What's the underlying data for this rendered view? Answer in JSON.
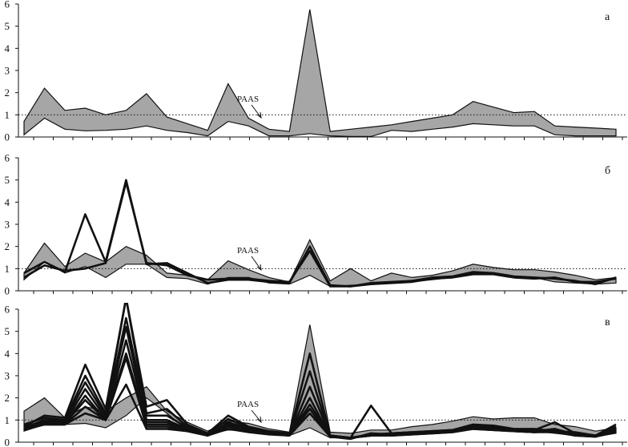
{
  "chart_data": [
    {
      "type": "area",
      "panel_label": "а",
      "ylim": [
        0,
        6
      ],
      "yticks": [
        "0",
        "1",
        "2",
        "3",
        "4",
        "5",
        "6"
      ],
      "x": [
        1,
        2,
        3,
        4,
        5,
        6,
        7,
        8,
        9,
        10,
        11,
        12,
        13,
        14,
        15,
        16,
        17,
        18,
        19,
        20,
        21,
        22,
        23,
        24,
        25,
        26,
        27,
        28,
        29,
        30
      ],
      "band": {
        "lower": [
          0.1,
          0.85,
          0.35,
          0.28,
          0.3,
          0.35,
          0.5,
          0.3,
          0.2,
          0.05,
          0.7,
          0.5,
          0.05,
          0.05,
          0.15,
          0.05,
          0.02,
          0.02,
          0.3,
          0.25,
          0.35,
          0.45,
          0.6,
          0.55,
          0.5,
          0.5,
          0.1,
          0.05,
          0.05,
          0.05
        ],
        "upper": [
          0.7,
          2.2,
          1.2,
          1.3,
          1.0,
          1.2,
          1.95,
          0.9,
          0.6,
          0.3,
          2.4,
          0.85,
          0.35,
          0.25,
          5.75,
          0.25,
          0.35,
          0.45,
          0.55,
          0.7,
          0.85,
          1.0,
          1.6,
          1.35,
          1.1,
          1.15,
          0.5,
          0.45,
          0.4,
          0.35
        ]
      },
      "lines": [],
      "reference": {
        "label": "PAAS",
        "value": 1
      }
    },
    {
      "type": "area",
      "panel_label": "б",
      "ylim": [
        0,
        6
      ],
      "yticks": [
        "0",
        "1",
        "2",
        "3",
        "4",
        "5",
        "6"
      ],
      "x": [
        1,
        2,
        3,
        4,
        5,
        6,
        7,
        8,
        9,
        10,
        11,
        12,
        13,
        14,
        15,
        16,
        17,
        18,
        19,
        20,
        21,
        22,
        23,
        24,
        25,
        26,
        27,
        28,
        29,
        30
      ],
      "band": {
        "lower": [
          0.5,
          1.3,
          0.8,
          1.1,
          0.6,
          1.2,
          1.2,
          0.6,
          0.55,
          0.3,
          0.6,
          0.6,
          0.35,
          0.3,
          0.7,
          0.2,
          0.25,
          0.3,
          0.35,
          0.4,
          0.5,
          0.6,
          0.8,
          0.75,
          0.6,
          0.6,
          0.4,
          0.35,
          0.3,
          0.35
        ],
        "upper": [
          0.8,
          2.15,
          1.1,
          1.7,
          1.3,
          2.0,
          1.6,
          0.8,
          0.7,
          0.5,
          1.35,
          0.95,
          0.6,
          0.4,
          2.3,
          0.45,
          1.0,
          0.45,
          0.8,
          0.6,
          0.7,
          0.9,
          1.2,
          1.05,
          0.95,
          0.95,
          0.85,
          0.7,
          0.5,
          0.6
        ]
      },
      "lines": [
        {
          "values": [
            0.8,
            1.3,
            0.85,
            3.45,
            1.3,
            5.0,
            1.2,
            1.25,
            0.8,
            0.35,
            0.5,
            0.5,
            0.4,
            0.35,
            2.0,
            0.25,
            0.2,
            0.35,
            0.4,
            0.45,
            0.6,
            0.65,
            0.85,
            0.8,
            0.65,
            0.6,
            0.55,
            0.45,
            0.3,
            0.6
          ]
        },
        {
          "values": [
            0.6,
            1.15,
            0.9,
            1.0,
            1.25,
            4.9,
            1.25,
            1.15,
            0.7,
            0.5,
            0.55,
            0.55,
            0.45,
            0.4,
            1.8,
            0.2,
            0.2,
            0.3,
            0.35,
            0.4,
            0.55,
            0.6,
            0.75,
            0.75,
            0.6,
            0.55,
            0.6,
            0.4,
            0.4,
            0.55
          ]
        }
      ],
      "reference": {
        "label": "PAAS",
        "value": 1
      }
    },
    {
      "type": "area",
      "panel_label": "в",
      "ylim": [
        0,
        6
      ],
      "yticks": [
        "0",
        "1",
        "2",
        "3",
        "4",
        "5",
        "6"
      ],
      "x": [
        1,
        2,
        3,
        4,
        5,
        6,
        7,
        8,
        9,
        10,
        11,
        12,
        13,
        14,
        15,
        16,
        17,
        18,
        19,
        20,
        21,
        22,
        23,
        24,
        25,
        26,
        27,
        28,
        29,
        30
      ],
      "band": {
        "lower": [
          0.5,
          0.8,
          0.8,
          0.85,
          0.65,
          1.2,
          2.0,
          1.3,
          0.55,
          0.35,
          0.55,
          0.5,
          0.35,
          0.3,
          0.65,
          0.2,
          0.2,
          0.3,
          0.35,
          0.4,
          0.45,
          0.5,
          0.6,
          0.55,
          0.5,
          0.5,
          0.4,
          0.3,
          0.25,
          0.4
        ],
        "upper": [
          1.4,
          2.0,
          1.1,
          1.6,
          1.4,
          2.0,
          2.5,
          1.4,
          0.9,
          0.5,
          0.95,
          0.85,
          0.6,
          0.45,
          5.3,
          0.45,
          0.4,
          0.55,
          0.55,
          0.7,
          0.8,
          0.95,
          1.15,
          1.05,
          1.1,
          1.1,
          0.8,
          0.7,
          0.5,
          0.65
        ]
      },
      "lines": [
        {
          "values": [
            0.7,
            1.2,
            1.1,
            3.5,
            1.5,
            6.5,
            1.6,
            1.9,
            0.8,
            0.4,
            1.2,
            0.7,
            0.5,
            0.4,
            1.5,
            0.3,
            0.2,
            1.65,
            0.4,
            0.45,
            0.5,
            0.55,
            0.8,
            0.75,
            0.6,
            0.6,
            0.5,
            0.45,
            0.3,
            0.7
          ]
        },
        {
          "values": [
            0.8,
            1.1,
            1.0,
            3.0,
            1.3,
            6.5,
            1.3,
            1.5,
            0.7,
            0.35,
            1.05,
            0.65,
            0.45,
            0.35,
            4.0,
            0.3,
            0.2,
            0.35,
            0.4,
            0.45,
            0.5,
            0.55,
            0.75,
            0.7,
            0.55,
            0.55,
            0.9,
            0.4,
            0.3,
            0.8
          ]
        },
        {
          "values": [
            0.65,
            1.0,
            0.95,
            2.7,
            1.2,
            5.6,
            1.2,
            1.2,
            0.65,
            0.3,
            0.9,
            0.6,
            0.4,
            0.35,
            3.2,
            0.25,
            0.15,
            0.4,
            0.35,
            0.4,
            0.45,
            0.5,
            0.7,
            0.65,
            0.55,
            0.5,
            0.6,
            0.35,
            0.3,
            0.6
          ]
        },
        {
          "values": [
            0.6,
            0.95,
            0.9,
            2.4,
            1.1,
            5.2,
            1.0,
            1.0,
            0.6,
            0.35,
            0.85,
            0.55,
            0.4,
            0.3,
            2.5,
            0.3,
            0.2,
            0.35,
            0.35,
            0.4,
            0.45,
            0.5,
            0.7,
            0.6,
            0.55,
            0.5,
            0.55,
            0.35,
            0.3,
            0.55
          ]
        },
        {
          "values": [
            0.6,
            0.9,
            0.85,
            2.1,
            1.0,
            4.6,
            0.9,
            0.9,
            0.55,
            0.35,
            0.8,
            0.55,
            0.4,
            0.3,
            2.0,
            0.25,
            0.2,
            0.35,
            0.35,
            0.4,
            0.45,
            0.5,
            0.7,
            0.6,
            0.5,
            0.5,
            0.55,
            0.35,
            0.3,
            0.55
          ]
        },
        {
          "values": [
            0.55,
            0.85,
            0.85,
            1.9,
            1.0,
            4.0,
            0.8,
            0.8,
            0.55,
            0.3,
            0.75,
            0.5,
            0.4,
            0.3,
            1.7,
            0.3,
            0.2,
            0.3,
            0.35,
            0.4,
            0.45,
            0.5,
            0.65,
            0.6,
            0.5,
            0.45,
            0.5,
            0.35,
            0.3,
            0.5
          ]
        },
        {
          "values": [
            0.55,
            0.8,
            0.8,
            1.6,
            1.0,
            3.8,
            0.7,
            0.7,
            0.5,
            0.3,
            0.7,
            0.5,
            0.4,
            0.3,
            1.5,
            0.25,
            0.2,
            0.3,
            0.3,
            0.35,
            0.4,
            0.45,
            0.6,
            0.55,
            0.5,
            0.45,
            0.5,
            0.3,
            0.25,
            0.5
          ]
        },
        {
          "values": [
            0.6,
            0.8,
            0.8,
            1.3,
            1.0,
            2.6,
            0.6,
            0.6,
            0.5,
            0.3,
            0.6,
            0.45,
            0.35,
            0.3,
            1.3,
            0.25,
            0.2,
            0.3,
            0.3,
            0.35,
            0.4,
            0.45,
            0.6,
            0.55,
            0.5,
            0.45,
            0.45,
            0.3,
            0.25,
            0.45
          ]
        }
      ],
      "reference": {
        "label": "PAAS",
        "value": 1
      }
    }
  ]
}
